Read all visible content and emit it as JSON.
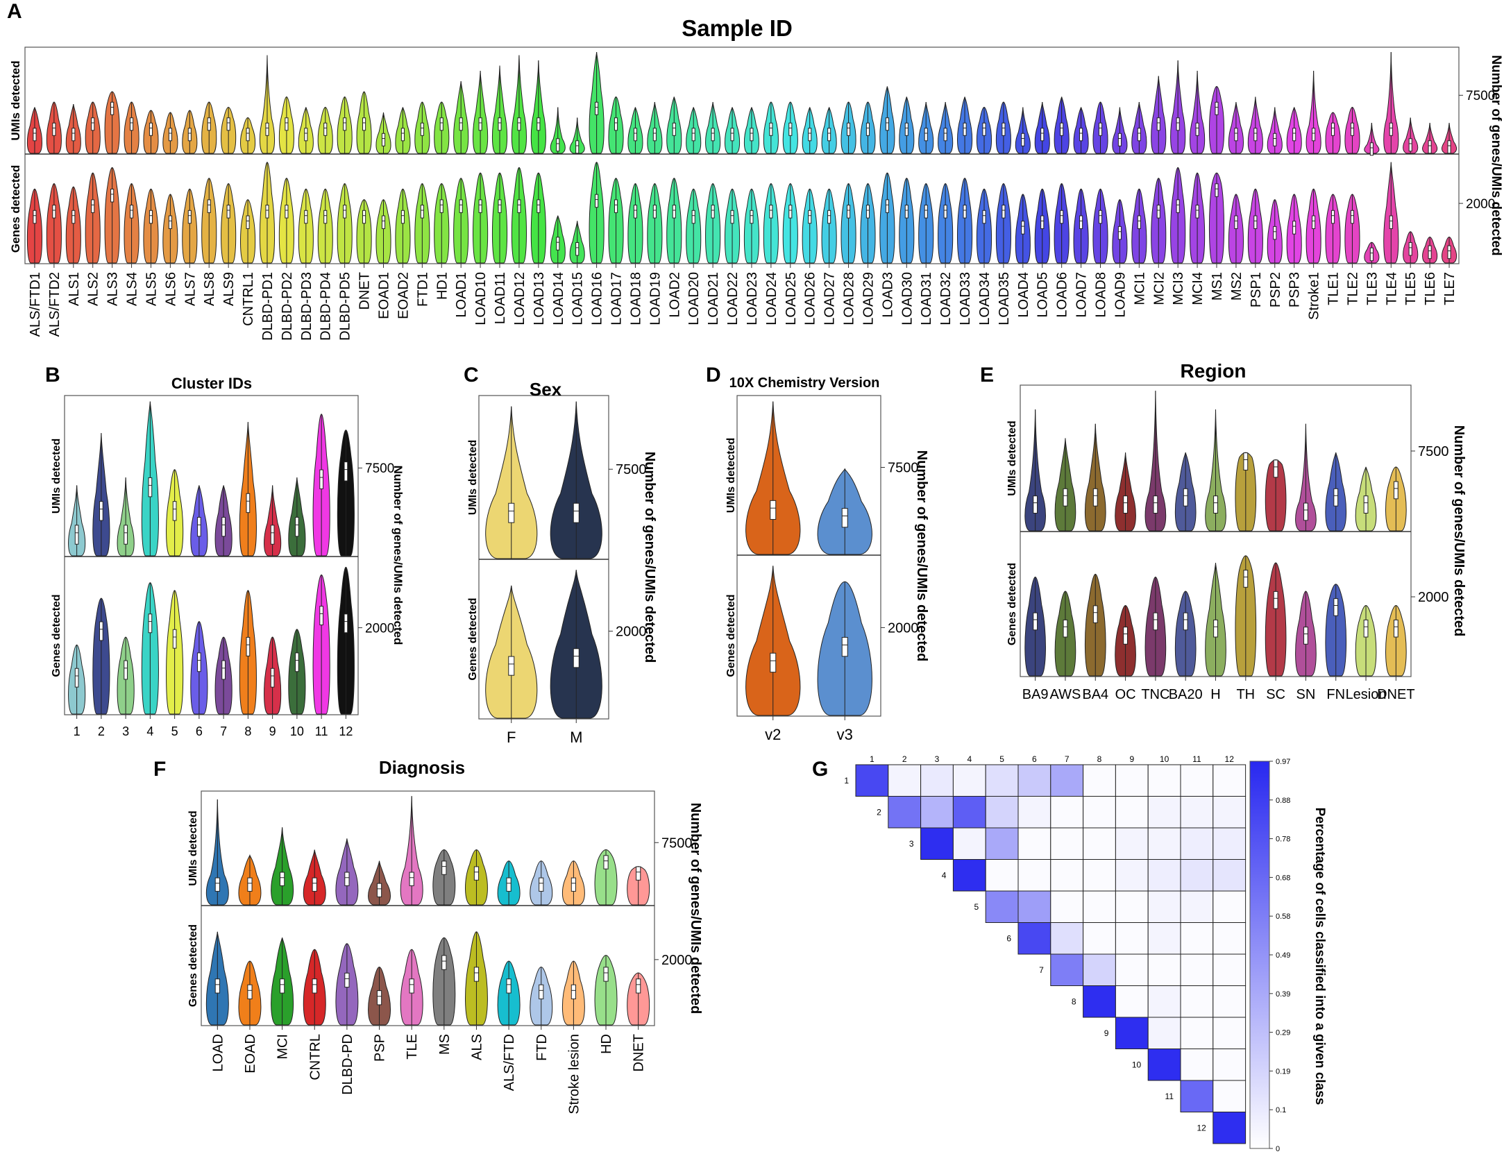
{
  "figure": {
    "panel_letters": [
      "A",
      "B",
      "C",
      "D",
      "E",
      "F",
      "G"
    ]
  },
  "chart_data": [
    {
      "panel": "A",
      "type": "violin",
      "title": "Sample ID",
      "ylabel_top": "UMIs detected",
      "ylabel_bottom": "Genes detected",
      "ylabel_right": "Number of genes/UMIs detected",
      "ytick_top": "7500",
      "ytick_bottom": "2000",
      "categories": [
        "ALS/FTD1",
        "ALS/FTD2",
        "ALS1",
        "ALS2",
        "ALS3",
        "ALS4",
        "ALS5",
        "ALS6",
        "ALS7",
        "ALS8",
        "ALS9",
        "CNTRL1",
        "DLBD-PD1",
        "DLBD-PD2",
        "DLBD-PD3",
        "DLBD-PD4",
        "DLBD-PD5",
        "DNET",
        "EOAD1",
        "EOAD2",
        "FTD1",
        "HD1",
        "LOAD1",
        "LOAD10",
        "LOAD11",
        "LOAD12",
        "LOAD13",
        "LOAD14",
        "LOAD15",
        "LOAD16",
        "LOAD17",
        "LOAD18",
        "LOAD19",
        "LOAD2",
        "LOAD20",
        "LOAD21",
        "LOAD22",
        "LOAD23",
        "LOAD24",
        "LOAD25",
        "LOAD26",
        "LOAD27",
        "LOAD28",
        "LOAD29",
        "LOAD3",
        "LOAD30",
        "LOAD31",
        "LOAD32",
        "LOAD33",
        "LOAD34",
        "LOAD35",
        "LOAD4",
        "LOAD5",
        "LOAD6",
        "LOAD7",
        "LOAD8",
        "LOAD9",
        "MCI1",
        "MCI2",
        "MCI3",
        "MCI4",
        "MS1",
        "MS2",
        "PSP1",
        "PSP2",
        "PSP3",
        "Stroke1",
        "TLE1",
        "TLE2",
        "TLE3",
        "TLE4",
        "TLE5",
        "TLE6",
        "TLE7"
      ],
      "umi_max": [
        0.45,
        0.5,
        0.48,
        0.5,
        0.6,
        0.5,
        0.42,
        0.4,
        0.42,
        0.5,
        0.45,
        0.35,
        0.95,
        0.55,
        0.45,
        0.45,
        0.55,
        0.6,
        0.4,
        0.45,
        0.5,
        0.5,
        0.7,
        0.8,
        0.85,
        0.95,
        0.9,
        0.45,
        0.35,
        0.98,
        0.55,
        0.45,
        0.5,
        0.55,
        0.45,
        0.5,
        0.45,
        0.45,
        0.5,
        0.5,
        0.45,
        0.45,
        0.5,
        0.5,
        0.65,
        0.55,
        0.5,
        0.5,
        0.55,
        0.45,
        0.5,
        0.45,
        0.5,
        0.55,
        0.45,
        0.5,
        0.45,
        0.5,
        0.75,
        0.9,
        0.8,
        0.65,
        0.5,
        0.55,
        0.45,
        0.45,
        0.8,
        0.4,
        0.45,
        0.3,
        0.98,
        0.35,
        0.3,
        0.3
      ],
      "umi_peak": [
        0.2,
        0.25,
        0.2,
        0.3,
        0.45,
        0.3,
        0.25,
        0.2,
        0.2,
        0.3,
        0.3,
        0.2,
        0.25,
        0.3,
        0.2,
        0.25,
        0.3,
        0.3,
        0.15,
        0.2,
        0.25,
        0.3,
        0.3,
        0.3,
        0.3,
        0.3,
        0.3,
        0.1,
        0.08,
        0.45,
        0.3,
        0.2,
        0.2,
        0.25,
        0.2,
        0.2,
        0.2,
        0.2,
        0.25,
        0.25,
        0.2,
        0.2,
        0.25,
        0.25,
        0.3,
        0.25,
        0.2,
        0.2,
        0.25,
        0.25,
        0.25,
        0.15,
        0.2,
        0.25,
        0.2,
        0.25,
        0.15,
        0.2,
        0.3,
        0.3,
        0.25,
        0.45,
        0.2,
        0.2,
        0.15,
        0.2,
        0.2,
        0.25,
        0.25,
        0.06,
        0.25,
        0.1,
        0.08,
        0.08
      ],
      "gene_max": [
        0.7,
        0.75,
        0.72,
        0.85,
        0.9,
        0.75,
        0.7,
        0.65,
        0.7,
        0.8,
        0.75,
        0.6,
        0.95,
        0.8,
        0.7,
        0.7,
        0.75,
        0.6,
        0.6,
        0.7,
        0.75,
        0.75,
        0.8,
        0.85,
        0.85,
        0.9,
        0.85,
        0.45,
        0.4,
        0.95,
        0.8,
        0.75,
        0.75,
        0.8,
        0.7,
        0.75,
        0.7,
        0.7,
        0.75,
        0.75,
        0.7,
        0.7,
        0.75,
        0.75,
        0.85,
        0.8,
        0.75,
        0.75,
        0.8,
        0.7,
        0.75,
        0.65,
        0.7,
        0.75,
        0.7,
        0.7,
        0.6,
        0.7,
        0.8,
        0.9,
        0.85,
        0.85,
        0.65,
        0.7,
        0.6,
        0.65,
        0.7,
        0.65,
        0.65,
        0.2,
        0.95,
        0.3,
        0.25,
        0.25
      ],
      "gene_peak": [
        0.45,
        0.5,
        0.45,
        0.55,
        0.65,
        0.5,
        0.45,
        0.4,
        0.45,
        0.55,
        0.5,
        0.4,
        0.5,
        0.5,
        0.45,
        0.45,
        0.5,
        0.45,
        0.4,
        0.45,
        0.5,
        0.55,
        0.55,
        0.55,
        0.55,
        0.55,
        0.55,
        0.2,
        0.15,
        0.6,
        0.55,
        0.5,
        0.5,
        0.5,
        0.45,
        0.5,
        0.45,
        0.45,
        0.5,
        0.5,
        0.45,
        0.45,
        0.5,
        0.5,
        0.55,
        0.5,
        0.5,
        0.5,
        0.5,
        0.45,
        0.5,
        0.35,
        0.4,
        0.45,
        0.4,
        0.45,
        0.3,
        0.4,
        0.5,
        0.55,
        0.5,
        0.7,
        0.4,
        0.4,
        0.3,
        0.35,
        0.4,
        0.45,
        0.45,
        0.1,
        0.4,
        0.15,
        0.12,
        0.12
      ]
    },
    {
      "panel": "B",
      "type": "violin",
      "title": "Cluster IDs",
      "ylabel_top": "UMIs detected",
      "ylabel_bottom": "Genes detected",
      "ylabel_right": "Number of genes/UMIs detected",
      "ytick_top": "7500",
      "ytick_bottom": "2000",
      "categories": [
        "1",
        "2",
        "3",
        "4",
        "5",
        "6",
        "7",
        "8",
        "9",
        "10",
        "11",
        "12"
      ],
      "colors": [
        "#8dc9cf",
        "#3d4a8f",
        "#8fd08a",
        "#3ad4c6",
        "#e3ee4a",
        "#6a5de8",
        "#7b4a9a",
        "#f07f1c",
        "#d6304a",
        "#3b6e3b",
        "#f038e4",
        "#111111"
      ],
      "umi_max": [
        0.45,
        0.78,
        0.5,
        0.98,
        0.55,
        0.45,
        0.45,
        0.85,
        0.45,
        0.5,
        0.9,
        0.8
      ],
      "umi_peak": [
        0.15,
        0.3,
        0.15,
        0.45,
        0.3,
        0.2,
        0.2,
        0.35,
        0.15,
        0.2,
        0.5,
        0.55
      ],
      "gene_max": [
        0.45,
        0.75,
        0.5,
        0.85,
        0.8,
        0.6,
        0.5,
        0.8,
        0.5,
        0.55,
        0.9,
        0.95
      ],
      "gene_peak": [
        0.25,
        0.55,
        0.3,
        0.6,
        0.5,
        0.35,
        0.3,
        0.45,
        0.25,
        0.35,
        0.65,
        0.6
      ]
    },
    {
      "panel": "C",
      "type": "violin",
      "title": "Sex",
      "ylabel_top": "UMIs detected",
      "ylabel_bottom": "Genes detected",
      "ylabel_right": "Number of genes/UMIs detected",
      "ytick_top": "7500",
      "ytick_bottom": "2000",
      "categories": [
        "F",
        "M"
      ],
      "colors": [
        "#ecd672",
        "#27344f"
      ],
      "umi_max": [
        0.95,
        0.98
      ],
      "umi_peak": [
        0.3,
        0.3
      ],
      "gene_max": [
        0.85,
        0.95
      ],
      "gene_peak": [
        0.35,
        0.4
      ]
    },
    {
      "panel": "D",
      "type": "violin",
      "title": "10X Chemistry Version",
      "ylabel_top": "UMIs detected",
      "ylabel_bottom": "Genes detected",
      "ylabel_right": "Number of genes/UMIs detected",
      "ytick_top": "7500",
      "ytick_bottom": "2000",
      "categories": [
        "v2",
        "v3"
      ],
      "colors": [
        "#d9641a",
        "#5b8fcf"
      ],
      "umi_max": [
        0.98,
        0.55
      ],
      "umi_peak": [
        0.3,
        0.25
      ],
      "gene_max": [
        0.95,
        0.85
      ],
      "gene_peak": [
        0.35,
        0.45
      ]
    },
    {
      "panel": "E",
      "type": "violin",
      "title": "Region",
      "ylabel_top": "UMIs detected",
      "ylabel_bottom": "Genes detected",
      "ylabel_right": "Number of genes/UMIs detected",
      "ytick_top": "7500",
      "ytick_bottom": "2000",
      "categories": [
        "BA9",
        "AWS",
        "BA4",
        "OC",
        "TNC",
        "BA20",
        "H",
        "TH",
        "SC",
        "SN",
        "FN",
        "Lesion",
        "DNET"
      ],
      "colors": [
        "#3b447e",
        "#5d7a3a",
        "#8c6a2f",
        "#8e2f2f",
        "#7b3a6b",
        "#4f5a9a",
        "#8cae5f",
        "#b8a03c",
        "#b33a48",
        "#b04f9a",
        "#4a5fbb",
        "#c7dd7a",
        "#e4bd55"
      ],
      "umi_max": [
        0.85,
        0.65,
        0.75,
        0.55,
        0.98,
        0.55,
        0.85,
        0.55,
        0.5,
        0.75,
        0.55,
        0.45,
        0.45
      ],
      "umi_peak": [
        0.2,
        0.25,
        0.25,
        0.2,
        0.2,
        0.25,
        0.2,
        0.5,
        0.45,
        0.15,
        0.25,
        0.2,
        0.3
      ],
      "gene_max": [
        0.7,
        0.6,
        0.72,
        0.5,
        0.7,
        0.6,
        0.8,
        0.85,
        0.8,
        0.6,
        0.65,
        0.5,
        0.5
      ],
      "gene_peak": [
        0.4,
        0.35,
        0.45,
        0.3,
        0.4,
        0.4,
        0.35,
        0.7,
        0.55,
        0.3,
        0.5,
        0.35,
        0.35
      ]
    },
    {
      "panel": "F",
      "type": "violin",
      "title": "Diagnosis",
      "ylabel_top": "UMIs detected",
      "ylabel_bottom": "Genes detected",
      "ylabel_right": "Number of genes/UMIs detected",
      "ytick_top": "7500",
      "ytick_bottom": "2000",
      "categories": [
        "LOAD",
        "EOAD",
        "MCI",
        "CNTRL",
        "DLBD-PD",
        "PSP",
        "TLE",
        "MS",
        "ALS",
        "ALS/FTD",
        "FTD",
        "Stroke lesion",
        "HD",
        "DNET"
      ],
      "colors": [
        "#2f76b3",
        "#f07f1a",
        "#2aa02b",
        "#d62728",
        "#9467bd",
        "#8c564b",
        "#e377c2",
        "#7f7f7f",
        "#bcbd22",
        "#17becf",
        "#aec7e8",
        "#ffbb78",
        "#98df8a",
        "#ff9896"
      ],
      "umi_max": [
        0.95,
        0.45,
        0.7,
        0.5,
        0.6,
        0.4,
        0.98,
        0.5,
        0.5,
        0.4,
        0.4,
        0.4,
        0.5,
        0.35
      ],
      "umi_peak": [
        0.2,
        0.2,
        0.25,
        0.2,
        0.25,
        0.15,
        0.25,
        0.35,
        0.3,
        0.2,
        0.2,
        0.2,
        0.4,
        0.3
      ],
      "gene_max": [
        0.8,
        0.55,
        0.75,
        0.65,
        0.7,
        0.5,
        0.65,
        0.75,
        0.8,
        0.55,
        0.5,
        0.55,
        0.6,
        0.45
      ],
      "gene_peak": [
        0.35,
        0.3,
        0.35,
        0.35,
        0.4,
        0.25,
        0.35,
        0.55,
        0.45,
        0.35,
        0.3,
        0.3,
        0.45,
        0.35
      ]
    },
    {
      "panel": "G",
      "type": "heatmap",
      "colorbar_label": "Percentage of cells classified into a given class",
      "colorbar_ticks": [
        "0.97",
        "0.88",
        "0.78",
        "0.68",
        "0.58",
        "0.49",
        "0.39",
        "0.29",
        "0.19",
        "0.1",
        "0"
      ],
      "col_labels": [
        "1",
        "2",
        "3",
        "4",
        "5",
        "6",
        "7",
        "8",
        "9",
        "10",
        "11",
        "12"
      ],
      "row_labels": [
        "1",
        "2",
        "3",
        "4",
        "5",
        "6",
        "7",
        "8",
        "9",
        "10",
        "11",
        "12"
      ],
      "matrix": [
        [
          0.85,
          0.05,
          0.1,
          0.05,
          0.15,
          0.25,
          0.4,
          0.02,
          0.02,
          0.02,
          0.02,
          0.02
        ],
        [
          0.65,
          0.35,
          0.75,
          0.2,
          0.05,
          0.02,
          0.02,
          0.02,
          0.05,
          0.05,
          0.05
        ],
        [
          0.97,
          0.05,
          0.4,
          0.02,
          0.02,
          0.02,
          0.05,
          0.05,
          0.08,
          0.08
        ],
        [
          0.97,
          0.02,
          0.02,
          0.02,
          0.02,
          0.05,
          0.08,
          0.12,
          0.12
        ],
        [
          0.55,
          0.45,
          0.02,
          0.02,
          0.02,
          0.05,
          0.05,
          0.02
        ],
        [
          0.85,
          0.15,
          0.02,
          0.02,
          0.05,
          0.02,
          0.02
        ],
        [
          0.6,
          0.2,
          0.02,
          0.02,
          0.02,
          0.02
        ],
        [
          0.97,
          0.02,
          0.05,
          0.02,
          0.02
        ],
        [
          0.97,
          0.05,
          0.02,
          0.02
        ],
        [
          0.97,
          0.02,
          0.02
        ],
        [
          0.7,
          0.02
        ],
        [
          0.97
        ]
      ]
    }
  ]
}
